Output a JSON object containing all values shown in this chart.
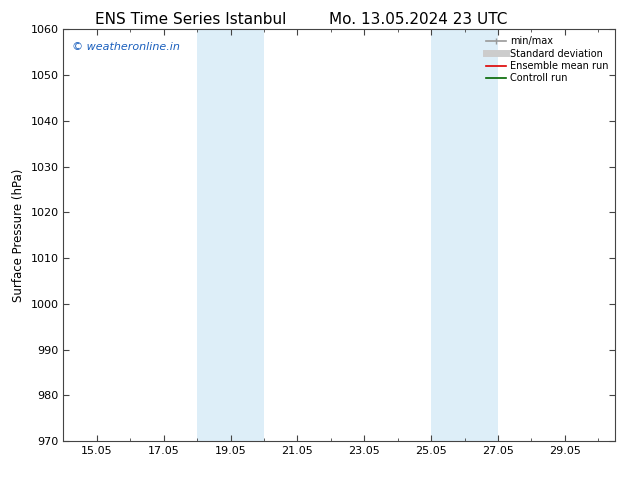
{
  "title1": "ENS Time Series Istanbul",
  "title2": "Mo. 13.05.2024 23 UTC",
  "ylabel": "Surface Pressure (hPa)",
  "ylim": [
    970,
    1060
  ],
  "yticks": [
    970,
    980,
    990,
    1000,
    1010,
    1020,
    1030,
    1040,
    1050,
    1060
  ],
  "xlim": [
    14.0,
    30.5
  ],
  "xtick_positions": [
    15,
    17,
    19,
    21,
    23,
    25,
    27,
    29
  ],
  "xtick_labels": [
    "15.05",
    "17.05",
    "19.05",
    "21.05",
    "23.05",
    "25.05",
    "27.05",
    "29.05"
  ],
  "shaded_regions": [
    {
      "x_start": 18.0,
      "x_end": 20.0,
      "color": "#ddeef8"
    },
    {
      "x_start": 25.0,
      "x_end": 27.0,
      "color": "#ddeef8"
    }
  ],
  "legend_entries": [
    {
      "label": "min/max",
      "color": "#999999",
      "lw": 1.2,
      "style": "line_with_cap"
    },
    {
      "label": "Standard deviation",
      "color": "#cccccc",
      "lw": 5,
      "style": "line"
    },
    {
      "label": "Ensemble mean run",
      "color": "#dd0000",
      "lw": 1.2,
      "style": "line"
    },
    {
      "label": "Controll run",
      "color": "#006600",
      "lw": 1.2,
      "style": "line"
    }
  ],
  "watermark": "© weatheronline.in",
  "watermark_color": "#1a5fbd",
  "bg_color": "#ffffff",
  "spine_color": "#444444",
  "tick_color": "#444444",
  "title_fontsize": 11,
  "label_fontsize": 8.5,
  "tick_fontsize": 8
}
